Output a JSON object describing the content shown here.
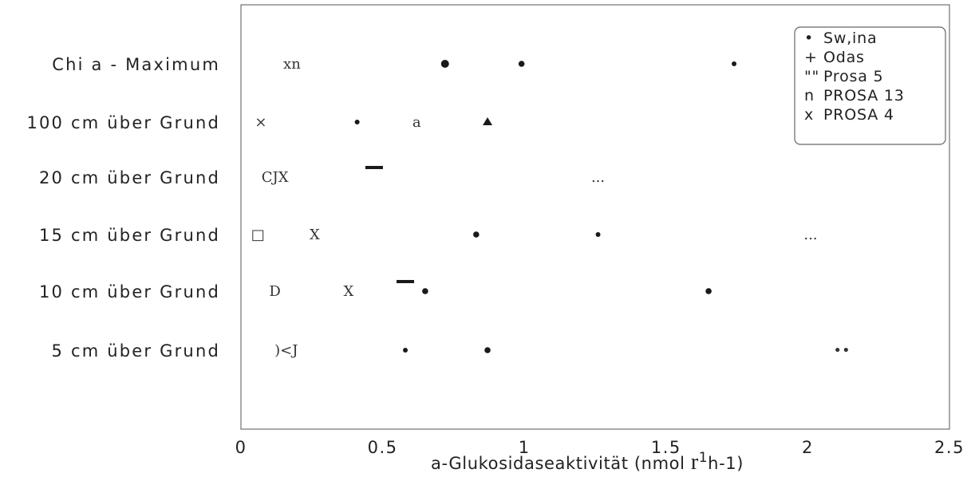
{
  "chart_data": {
    "type": "scatter",
    "xlabel": "a-Glukosidaseaktivität (nmol",
    "xlabel_unit_big": "r",
    "xlabel_unit_sup": "1",
    "xlabel_unit_tail": "h-1)",
    "xlim": [
      0,
      2.5
    ],
    "x_ticks": [
      "0",
      "0.5",
      "1",
      "1.5",
      "2",
      "2.5"
    ],
    "x_tick_values": [
      0,
      0.5,
      1,
      1.5,
      2,
      2.5
    ],
    "categories": [
      "Chi a - Maximum",
      "100 cm über Grund",
      "20 cm über Grund",
      "15 cm über Grund",
      "10 cm über Grund",
      "5 cm über Grund"
    ],
    "legend": {
      "placement": "top-right",
      "entries": [
        {
          "symbol": "•",
          "label": "Sw,ina"
        },
        {
          "symbol": "+",
          "label": "Odas"
        },
        {
          "symbol": "\"\"",
          "label": "Prosa 5"
        },
        {
          "symbol": "n",
          "label": "PROSA 13"
        },
        {
          "symbol": "x",
          "label": "PROSA 4"
        }
      ]
    },
    "points": [
      {
        "category": "Chi a - Maximum",
        "x": 0.18,
        "symbol": "xn",
        "kind": "text"
      },
      {
        "category": "Chi a - Maximum",
        "x": 0.72,
        "symbol": "•",
        "kind": "dot",
        "size": "large"
      },
      {
        "category": "Chi a - Maximum",
        "x": 0.99,
        "symbol": "•",
        "kind": "dot",
        "size": "medium"
      },
      {
        "category": "Chi a - Maximum",
        "x": 1.74,
        "symbol": "•",
        "kind": "dot",
        "size": "small"
      },
      {
        "category": "100 cm über Grund",
        "x": 0.07,
        "symbol": "×",
        "kind": "text"
      },
      {
        "category": "100 cm über Grund",
        "x": 0.41,
        "symbol": "•",
        "kind": "dot",
        "size": "small"
      },
      {
        "category": "100 cm über Grund",
        "x": 0.62,
        "symbol": "a",
        "kind": "text"
      },
      {
        "category": "100 cm über Grund",
        "x": 0.87,
        "symbol": "▲",
        "kind": "triangle"
      },
      {
        "category": "20 cm über Grund",
        "x": 0.12,
        "symbol": "CJX",
        "kind": "text"
      },
      {
        "category": "20 cm über Grund",
        "x": 0.47,
        "symbol": "-",
        "kind": "dash"
      },
      {
        "category": "20 cm über Grund",
        "x": 1.26,
        "symbol": "...",
        "kind": "text"
      },
      {
        "category": "15 cm über Grund",
        "x": 0.06,
        "symbol": "□",
        "kind": "text"
      },
      {
        "category": "15 cm über Grund",
        "x": 0.26,
        "symbol": "X",
        "kind": "text"
      },
      {
        "category": "15 cm über Grund",
        "x": 0.83,
        "symbol": "•",
        "kind": "dot",
        "size": "medium"
      },
      {
        "category": "15 cm über Grund",
        "x": 1.26,
        "symbol": "•",
        "kind": "dot",
        "size": "small"
      },
      {
        "category": "15 cm über Grund",
        "x": 2.01,
        "symbol": "...",
        "kind": "text"
      },
      {
        "category": "10 cm über Grund",
        "x": 0.12,
        "symbol": "D",
        "kind": "text"
      },
      {
        "category": "10 cm über Grund",
        "x": 0.38,
        "symbol": "X",
        "kind": "text"
      },
      {
        "category": "10 cm über Grund",
        "x": 0.58,
        "symbol": "-",
        "kind": "dash"
      },
      {
        "category": "10 cm über Grund",
        "x": 0.65,
        "symbol": "•",
        "kind": "dot",
        "size": "medium"
      },
      {
        "category": "10 cm über Grund",
        "x": 1.65,
        "symbol": "•",
        "kind": "dot",
        "size": "medium"
      },
      {
        "category": "5 cm über Grund",
        "x": 0.16,
        "symbol": ")<J",
        "kind": "text"
      },
      {
        "category": "5 cm über Grund",
        "x": 0.58,
        "symbol": "•",
        "kind": "dot",
        "size": "small"
      },
      {
        "category": "5 cm über Grund",
        "x": 0.87,
        "symbol": "•",
        "kind": "dot",
        "size": "medium"
      },
      {
        "category": "5 cm über Grund",
        "x": 2.12,
        "symbol": "••",
        "kind": "text"
      }
    ],
    "grid": false
  }
}
